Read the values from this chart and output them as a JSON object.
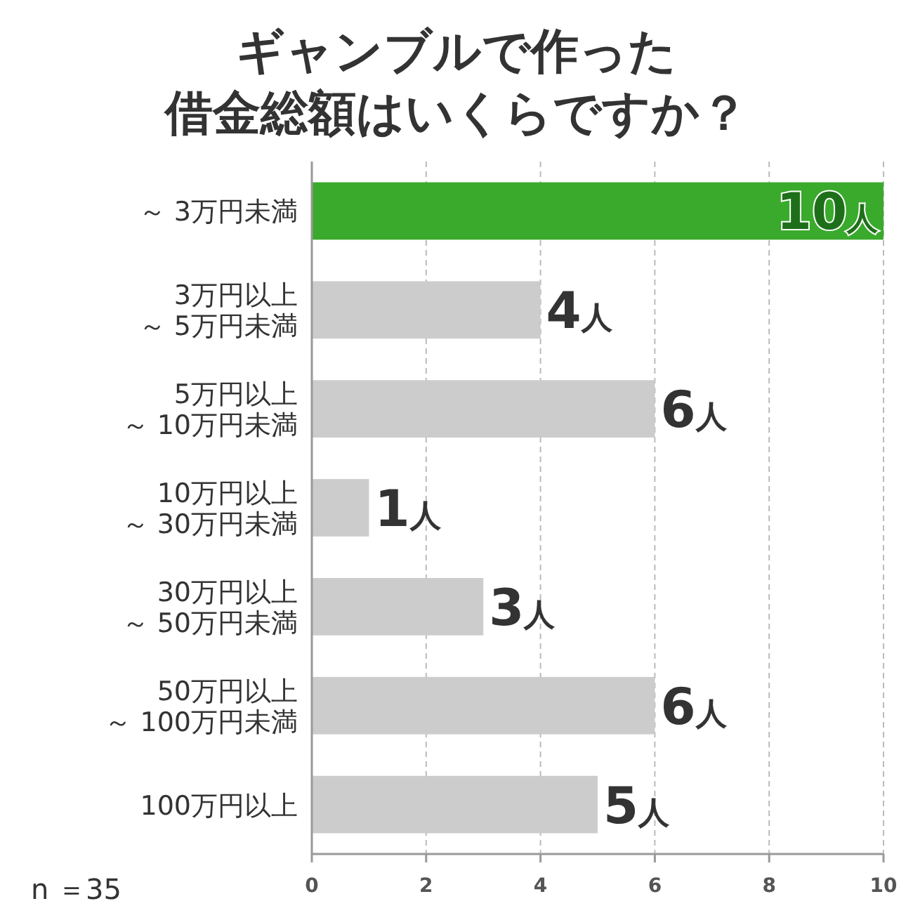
{
  "chart_data": {
    "type": "bar",
    "orientation": "horizontal",
    "title": "ギャンブルで作った借金総額はいくらですか？",
    "categories": [
      "～ 3万円未満",
      "3万円以上～ 5万円未満",
      "5万円以上～ 10万円未満",
      "10万円以上～ 30万円未満",
      "30万円以上～ 50万円未満",
      "50万円以上～ 100万円未満",
      "100万円以上"
    ],
    "values": [
      10,
      4,
      6,
      1,
      3,
      6,
      5
    ],
    "colors": [
      "#3aaa2c",
      "#cccccc",
      "#cccccc",
      "#cccccc",
      "#cccccc",
      "#cccccc",
      "#cccccc"
    ],
    "value_labels": [
      "10人",
      "4人",
      "6人",
      "1人",
      "3人",
      "6人",
      "5人"
    ],
    "xlim": [
      0,
      10
    ],
    "xticks": [
      0,
      2,
      4,
      6,
      8,
      10
    ],
    "grid": "x",
    "annotations": [
      "n ＝35"
    ]
  }
}
